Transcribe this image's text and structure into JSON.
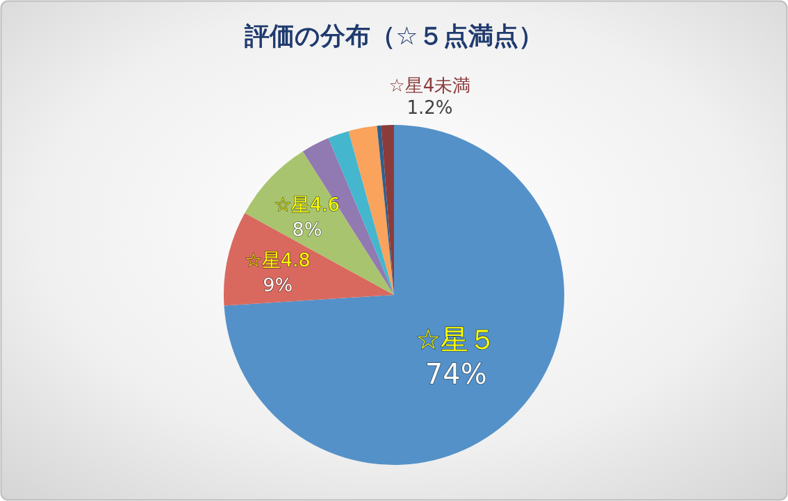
{
  "chart_data": {
    "type": "pie",
    "title": "評価の分布（☆５点満点）",
    "categories": [
      "☆星５",
      "☆星4.8",
      "☆星4.6",
      null,
      null,
      null,
      null,
      "☆星4未満"
    ],
    "values": [
      74,
      9,
      8,
      2.7,
      2.0,
      2.7,
      0.4,
      1.2
    ],
    "colors": [
      "#5491c8",
      "#d9695f",
      "#a9c46e",
      "#9179b1",
      "#44b6ce",
      "#f9a35c",
      "#2e5f8f",
      "#8c3b3b"
    ],
    "value_labels": [
      "74%",
      "9%",
      "8%",
      null,
      null,
      null,
      null,
      "1.2%"
    ]
  }
}
